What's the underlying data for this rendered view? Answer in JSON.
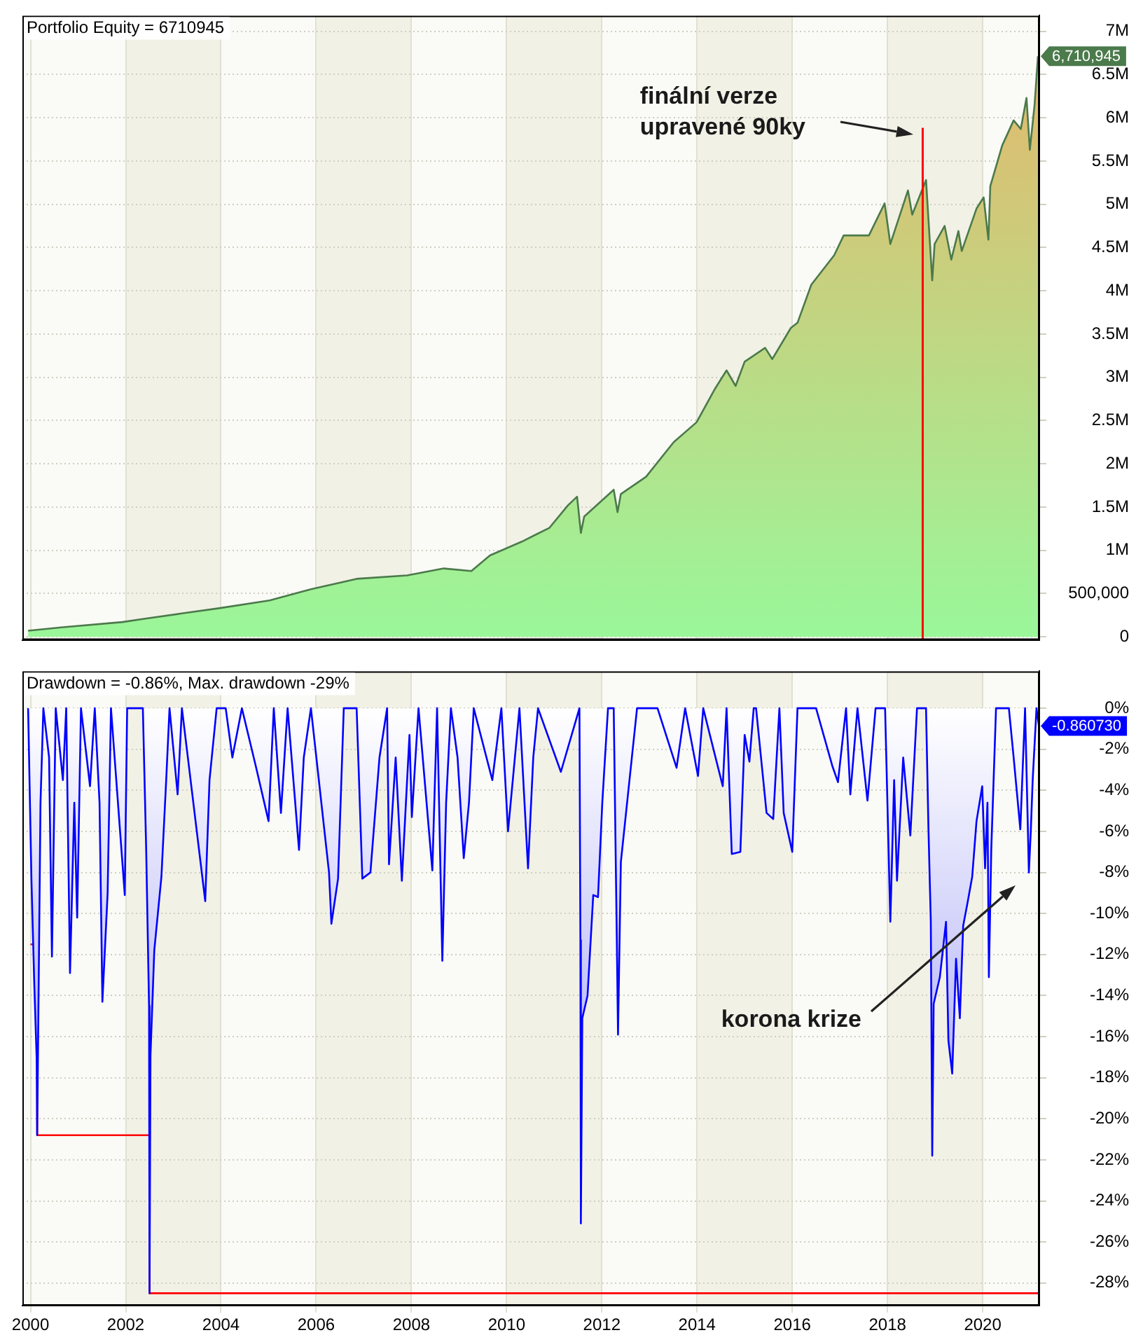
{
  "chart_data": [
    {
      "type": "area",
      "title": "Portfolio Equity = 6710945",
      "x": [
        1999.95,
        2000.68,
        2001.93,
        2002.41,
        2003.18,
        2003.96,
        2005.02,
        2005.89,
        2006.85,
        2007.91,
        2008.68,
        2009.26,
        2009.65,
        2010.32,
        2010.9,
        2011.29,
        2011.48,
        2011.56,
        2011.63,
        2012.25,
        2012.33,
        2012.4,
        2012.93,
        2013.51,
        2013.99,
        2014.38,
        2014.62,
        2014.81,
        2015.0,
        2015.43,
        2015.58,
        2015.97,
        2016.11,
        2016.4,
        2016.88,
        2017.08,
        2017.61,
        2017.94,
        2018.06,
        2018.43,
        2018.52,
        2018.81,
        2018.94,
        2018.99,
        2019.2,
        2019.34,
        2019.49,
        2019.56,
        2019.87,
        2020.02,
        2020.12,
        2020.16,
        2020.41,
        2020.65,
        2020.8,
        2020.92,
        2020.99,
        2021.09,
        2021.16
      ],
      "series": [
        {
          "color": "#4b7a4b",
          "values": [
            70000,
            110000,
            170000,
            210000,
            270000,
            330000,
            420000,
            550000,
            670000,
            710000,
            790000,
            760000,
            940000,
            1100000,
            1260000,
            1520000,
            1620000,
            1200000,
            1390000,
            1700000,
            1440000,
            1650000,
            1850000,
            2250000,
            2480000,
            2870000,
            3080000,
            2900000,
            3180000,
            3340000,
            3210000,
            3570000,
            3630000,
            4070000,
            4410000,
            4640000,
            4640000,
            5010000,
            4540000,
            5160000,
            4880000,
            5280000,
            4120000,
            4540000,
            4750000,
            4360000,
            4690000,
            4460000,
            4950000,
            5080000,
            4590000,
            5210000,
            5680000,
            5970000,
            5870000,
            6230000,
            5630000,
            6150000,
            6710945
          ],
          "value_labels": [
            null,
            null,
            null,
            null,
            null,
            null,
            null,
            null,
            null,
            null,
            null,
            null,
            null,
            null,
            null,
            null,
            null,
            null,
            null,
            null,
            null,
            null,
            null,
            null,
            null,
            null,
            null,
            null,
            null,
            null,
            null,
            null,
            null,
            null,
            null,
            null,
            null,
            null,
            null,
            null,
            null,
            null,
            null,
            null,
            null,
            null,
            null,
            null,
            null,
            null,
            null,
            null,
            null,
            null,
            null,
            null,
            null,
            null,
            "6,710,945"
          ]
        }
      ],
      "xlim": [
        1999.83,
        2021.19
      ],
      "xticks": [
        2000,
        2002,
        2004,
        2006,
        2008,
        2010,
        2012,
        2014,
        2016,
        2018,
        2020
      ],
      "ylim": [
        -36000,
        7180000
      ],
      "yticks": [
        0,
        {
          "value": 500000,
          "label": "500,000"
        },
        {
          "value": 1000000,
          "label": "1M"
        },
        {
          "value": 1500000,
          "label": "1.5M"
        },
        {
          "value": 2000000,
          "label": "2M"
        },
        {
          "value": 2500000,
          "label": "2.5M"
        },
        {
          "value": 3000000,
          "label": "3M"
        },
        {
          "value": 3500000,
          "label": "3.5M"
        },
        {
          "value": 4000000,
          "label": "4M"
        },
        {
          "value": 4500000,
          "label": "4.5M"
        },
        {
          "value": 5000000,
          "label": "5M"
        },
        {
          "value": 5500000,
          "label": "5.5M"
        },
        {
          "value": 6000000,
          "label": "6M"
        },
        {
          "value": 6500000,
          "label": "6.5M"
        },
        {
          "value": 7000000,
          "label": "7M"
        }
      ],
      "tick_labels": "y",
      "grid": true,
      "bands": [
        {
          "axis": "x",
          "from": 2002,
          "to": 2004,
          "color": "#f2f1e6"
        },
        {
          "axis": "x",
          "from": 2006,
          "to": 2008,
          "color": "#f2f1e6"
        },
        {
          "axis": "x",
          "from": 2010,
          "to": 2012,
          "color": "#f2f1e6"
        },
        {
          "axis": "x",
          "from": 2014,
          "to": 2016,
          "color": "#f2f1e6"
        },
        {
          "axis": "x",
          "from": 2018,
          "to": 2020,
          "color": "#f2f1e6"
        }
      ],
      "ref_lines": [
        {
          "axis": "x",
          "value": 2018.74,
          "color": "#ff0000"
        }
      ],
      "annotations": [
        "finální verze upravené 90ky"
      ]
    },
    {
      "type": "area",
      "title": "Drawdown = -0.86%, Max. drawdown -29%",
      "x": [
        1999.95,
        2000.02,
        2000.08,
        2000.13,
        2000.14,
        2000.21,
        2000.27,
        2000.39,
        2000.45,
        2000.53,
        2000.68,
        2000.75,
        2000.83,
        2000.92,
        2000.98,
        2001.06,
        2001.25,
        2001.35,
        2001.45,
        2001.51,
        2001.62,
        2001.69,
        2001.98,
        2002.03,
        2002.36,
        2002.43,
        2002.49,
        2002.5,
        2002.52,
        2002.6,
        2002.75,
        2002.85,
        2002.92,
        2003.09,
        2003.18,
        2003.67,
        2003.76,
        2003.91,
        2004.1,
        2004.24,
        2004.44,
        2004.73,
        2005.0,
        2005.11,
        2005.26,
        2005.4,
        2005.64,
        2005.74,
        2005.89,
        2006.27,
        2006.32,
        2006.46,
        2006.58,
        2006.85,
        2006.97,
        2007.14,
        2007.33,
        2007.49,
        2007.53,
        2007.67,
        2007.8,
        2007.96,
        2008.01,
        2008.15,
        2008.44,
        2008.54,
        2008.65,
        2008.73,
        2008.83,
        2008.97,
        2009.1,
        2009.21,
        2009.31,
        2009.7,
        2009.89,
        2010.03,
        2010.27,
        2010.45,
        2010.56,
        2010.66,
        2011.14,
        2011.53,
        2011.55,
        2011.56,
        2011.59,
        2011.7,
        2011.82,
        2011.92,
        2012.01,
        2012.13,
        2012.25,
        2012.32,
        2012.34,
        2012.4,
        2012.59,
        2012.74,
        2013.17,
        2013.57,
        2013.75,
        2014.02,
        2014.13,
        2014.54,
        2014.62,
        2014.73,
        2014.91,
        2015.0,
        2015.1,
        2015.19,
        2015.24,
        2015.46,
        2015.6,
        2015.73,
        2015.82,
        2016.0,
        2016.11,
        2016.5,
        2016.84,
        2016.96,
        2017.13,
        2017.22,
        2017.37,
        2017.58,
        2017.75,
        2017.95,
        2018.06,
        2018.14,
        2018.2,
        2018.33,
        2018.48,
        2018.62,
        2018.81,
        2018.86,
        2018.91,
        2018.94,
        2018.97,
        2019.1,
        2019.23,
        2019.28,
        2019.36,
        2019.44,
        2019.52,
        2019.59,
        2019.68,
        2019.78,
        2019.87,
        2019.99,
        2020.05,
        2020.1,
        2020.13,
        2020.18,
        2020.28,
        2020.55,
        2020.65,
        2020.79,
        2020.89,
        2020.97,
        2021.01,
        2021.05,
        2021.13,
        2021.18
      ],
      "series": [
        {
          "color": "#0000ff",
          "values": [
            0,
            -8.4,
            -13.5,
            -17.1,
            -20.8,
            -4.6,
            0,
            -2.4,
            -12.1,
            0,
            -3.5,
            0,
            -12.9,
            -4.6,
            -10.2,
            0,
            -3.8,
            0,
            -4.6,
            -14.3,
            -9.0,
            0,
            -9.1,
            0,
            0,
            -6.9,
            -14.5,
            -28.5,
            -16.9,
            -11.8,
            -8.2,
            -3.5,
            0,
            -4.2,
            0,
            -9.4,
            -3.5,
            0,
            0,
            -2.4,
            0,
            -2.8,
            -5.5,
            0,
            -5.1,
            0,
            -6.9,
            -2.4,
            0,
            -8.0,
            -10.5,
            -8.3,
            0,
            0,
            -8.3,
            -8.0,
            -2.4,
            0,
            -7.6,
            -2.4,
            -8.4,
            -1.3,
            -5.3,
            0,
            -7.9,
            0,
            -12.3,
            -4.6,
            0,
            -2.4,
            -7.3,
            -4.6,
            0,
            -3.5,
            0,
            -6.0,
            0,
            -7.8,
            -2.4,
            0,
            -3.1,
            0,
            -11.3,
            -25.1,
            -15.1,
            -14.0,
            -9.1,
            -9.2,
            -4.6,
            0,
            0,
            -12.2,
            -15.9,
            -7.5,
            -3.3,
            0,
            0,
            -2.9,
            0,
            -3.3,
            0,
            -3.8,
            0,
            -7.1,
            -7.0,
            -1.3,
            -2.6,
            0,
            0,
            -5.1,
            -5.4,
            0,
            -5.1,
            -7.0,
            0,
            0,
            -2.8,
            -3.6,
            0,
            -4.2,
            0,
            -4.5,
            0,
            0,
            -10.4,
            -3.5,
            -8.4,
            -2.4,
            -6.2,
            0,
            0,
            -5.8,
            -10.4,
            -21.8,
            -14.4,
            -13.1,
            -10.4,
            -16.2,
            -17.8,
            -12.2,
            -15.1,
            -10.6,
            -9.5,
            -8.2,
            -5.5,
            -3.8,
            -7.8,
            -4.6,
            -13.1,
            -6.9,
            0,
            0,
            -2.4,
            -5.9,
            0,
            -8.0,
            -6.0,
            -3.5,
            0,
            -0.86073
          ],
          "value_labels": [
            null,
            null,
            null,
            null,
            null,
            null,
            null,
            null,
            null,
            null,
            null,
            null,
            null,
            null,
            null,
            null,
            null,
            null,
            null,
            null,
            null,
            null,
            null,
            null,
            null,
            null,
            null,
            null,
            null,
            null,
            null,
            null,
            null,
            null,
            null,
            null,
            null,
            null,
            null,
            null,
            null,
            null,
            null,
            null,
            null,
            null,
            null,
            null,
            null,
            null,
            null,
            null,
            null,
            null,
            null,
            null,
            null,
            null,
            null,
            null,
            null,
            null,
            null,
            null,
            null,
            null,
            null,
            null,
            null,
            null,
            null,
            null,
            null,
            null,
            null,
            null,
            null,
            null,
            null,
            null,
            null,
            null,
            null,
            null,
            null,
            null,
            null,
            null,
            null,
            null,
            null,
            null,
            null,
            null,
            null,
            null,
            null,
            null,
            null,
            null,
            null,
            null,
            null,
            null,
            null,
            null,
            null,
            null,
            null,
            null,
            null,
            null,
            null,
            null,
            null,
            null,
            null,
            null,
            null,
            null,
            null,
            null,
            null,
            null,
            null,
            null,
            null,
            null,
            null,
            null,
            null,
            null,
            null,
            null,
            null,
            null,
            null,
            null,
            null,
            null,
            null,
            null,
            null,
            null,
            null,
            null,
            null,
            null,
            null,
            null,
            null,
            null,
            null,
            null,
            null,
            null,
            null,
            null,
            null,
            "-0.860730"
          ]
        },
        {
          "type": "step",
          "color": "#ff0000",
          "x": [
            2000.0,
            2000.14,
            2002.5,
            2021.18
          ],
          "values": [
            -11.5,
            -20.8,
            -28.5,
            -28.5
          ]
        }
      ],
      "xlim": [
        1999.83,
        2021.19
      ],
      "xticks": [
        2000,
        2002,
        2004,
        2006,
        2008,
        2010,
        2012,
        2014,
        2016,
        2018,
        2020
      ],
      "ylim": [
        -29.1,
        1.8
      ],
      "yticks": [
        {
          "value": 0,
          "label": "0%"
        },
        {
          "value": -2,
          "label": "-2%"
        },
        {
          "value": -4,
          "label": "-4%"
        },
        {
          "value": -6,
          "label": "-6%"
        },
        {
          "value": -8,
          "label": "-8%"
        },
        {
          "value": -10,
          "label": "-10%"
        },
        {
          "value": -12,
          "label": "-12%"
        },
        {
          "value": -14,
          "label": "-14%"
        },
        {
          "value": -16,
          "label": "-16%"
        },
        {
          "value": -18,
          "label": "-18%"
        },
        {
          "value": -20,
          "label": "-20%"
        },
        {
          "value": -22,
          "label": "-22%"
        },
        {
          "value": -24,
          "label": "-24%"
        },
        {
          "value": -26,
          "label": "-26%"
        },
        {
          "value": -28,
          "label": "-28%"
        }
      ],
      "grid": true,
      "bands": [
        {
          "axis": "x",
          "from": 2002,
          "to": 2004,
          "color": "#f2f1e6"
        },
        {
          "axis": "x",
          "from": 2006,
          "to": 2008,
          "color": "#f2f1e6"
        },
        {
          "axis": "x",
          "from": 2010,
          "to": 2012,
          "color": "#f2f1e6"
        },
        {
          "axis": "x",
          "from": 2014,
          "to": 2016,
          "color": "#f2f1e6"
        },
        {
          "axis": "x",
          "from": 2018,
          "to": 2020,
          "color": "#f2f1e6"
        }
      ],
      "annotations": [
        "korona krize"
      ]
    }
  ]
}
